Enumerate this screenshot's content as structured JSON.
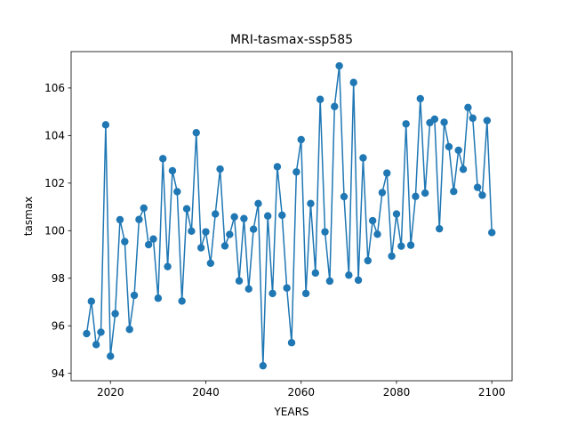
{
  "chart_data": {
    "type": "line",
    "title": "MRI-tasmax-ssp585",
    "xlabel": "YEARS",
    "ylabel": "tasmax",
    "xlim": [
      2011.75,
      2104.25
    ],
    "ylim": [
      93.69,
      107.53
    ],
    "xticks": [
      2020,
      2040,
      2060,
      2080,
      2100
    ],
    "yticks": [
      94,
      96,
      98,
      100,
      102,
      104,
      106
    ],
    "grid": false,
    "color": "#1f77b4",
    "marker": "circle",
    "series": [
      {
        "x": [
          2015,
          2016,
          2017,
          2018,
          2019,
          2020,
          2021,
          2022,
          2023,
          2024,
          2025,
          2026,
          2027,
          2028,
          2029,
          2030,
          2031,
          2032,
          2033,
          2034,
          2035,
          2036,
          2037,
          2038,
          2039,
          2040,
          2041,
          2042,
          2043,
          2044,
          2045,
          2046,
          2047,
          2048,
          2049,
          2050,
          2051,
          2052,
          2053,
          2054,
          2055,
          2056,
          2057,
          2058,
          2059,
          2060,
          2061,
          2062,
          2063,
          2064,
          2065,
          2066,
          2067,
          2068,
          2069,
          2070,
          2071,
          2072,
          2073,
          2074,
          2075,
          2076,
          2077,
          2078,
          2079,
          2080,
          2081,
          2082,
          2083,
          2084,
          2085,
          2086,
          2087,
          2088,
          2089,
          2090,
          2091,
          2092,
          2093,
          2094,
          2095,
          2096,
          2097,
          2098,
          2099,
          2100
        ],
        "y": [
          95.67,
          97.03,
          95.21,
          95.73,
          104.45,
          94.72,
          96.51,
          100.46,
          99.54,
          95.85,
          97.28,
          100.47,
          100.95,
          99.41,
          99.65,
          97.16,
          103.03,
          98.49,
          102.52,
          101.64,
          97.04,
          100.92,
          99.98,
          104.12,
          99.28,
          99.95,
          98.63,
          100.7,
          102.59,
          99.36,
          99.84,
          100.58,
          97.89,
          100.51,
          97.55,
          100.06,
          101.14,
          94.32,
          100.62,
          97.36,
          102.69,
          100.65,
          97.59,
          95.29,
          102.47,
          103.83,
          97.36,
          101.14,
          98.22,
          105.52,
          99.95,
          97.88,
          105.22,
          106.93,
          101.43,
          98.13,
          106.23,
          97.92,
          103.06,
          98.74,
          100.42,
          99.85,
          101.6,
          102.42,
          98.93,
          100.7,
          99.35,
          104.49,
          99.39,
          101.44,
          105.55,
          101.58,
          104.54,
          104.69,
          100.08,
          104.56,
          103.53,
          101.65,
          103.38,
          102.58,
          105.18,
          104.73,
          101.82,
          101.49,
          104.63,
          99.92
        ]
      }
    ]
  }
}
